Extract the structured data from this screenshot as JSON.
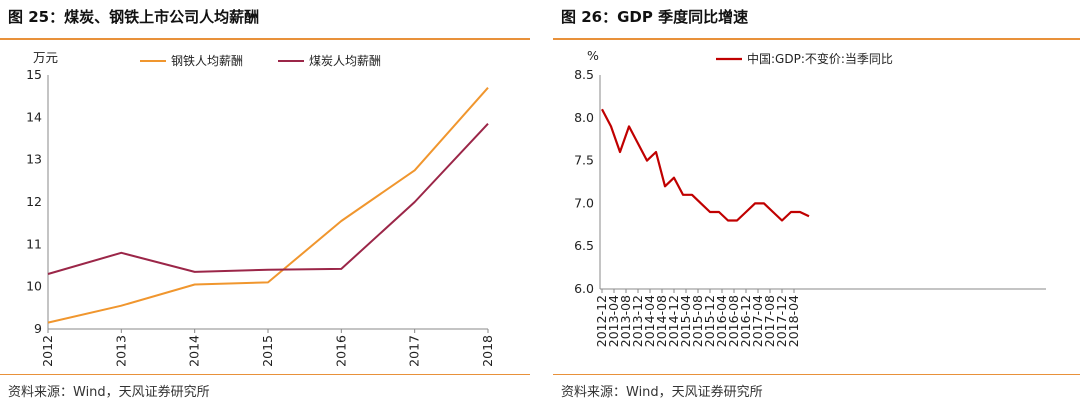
{
  "left": {
    "title": "图 25：煤炭、钢铁上市公司人均薪酬",
    "source": "资料来源：Wind，天风证券研究所"
  },
  "right": {
    "title": "图 26：GDP 季度同比增速",
    "source": "资料来源：Wind，天风证券研究所"
  },
  "colors": {
    "accent": "#E8913A",
    "steel": "#F0962E",
    "coal": "#9B2648",
    "gdp": "#C00000"
  },
  "chart_data": [
    {
      "type": "line",
      "ylabel": "万元",
      "ylim": [
        9,
        15
      ],
      "yticks": [
        "15",
        "14",
        "13",
        "12",
        "11",
        "10",
        "9"
      ],
      "categories": [
        "2012",
        "2013",
        "2014",
        "2015",
        "2016",
        "2017",
        "2018"
      ],
      "legend_position": "top",
      "grid": false,
      "series": [
        {
          "name": "钢铁人均薪酬",
          "values": [
            9.15,
            9.55,
            10.05,
            10.1,
            11.55,
            12.75,
            14.7
          ]
        },
        {
          "name": "煤炭人均薪酬",
          "values": [
            10.3,
            10.8,
            10.35,
            10.4,
            10.42,
            12.0,
            13.85
          ]
        }
      ]
    },
    {
      "type": "line",
      "ylabel": "%",
      "ylim": [
        6.0,
        8.5
      ],
      "yticks": [
        "8.5",
        "8.0",
        "7.5",
        "7.0",
        "6.5",
        "6.0"
      ],
      "x": [
        "2012-12",
        "2013-03",
        "2013-06",
        "2013-09",
        "2013-12",
        "2014-03",
        "2014-06",
        "2014-09",
        "2014-12",
        "2015-03",
        "2015-06",
        "2015-09",
        "2015-12",
        "2016-03",
        "2016-06",
        "2016-09",
        "2016-12",
        "2017-03",
        "2017-06",
        "2017-09",
        "2017-12",
        "2018-03",
        "2018-06",
        "2018-09"
      ],
      "xticks": [
        "2012-12",
        "2013-04",
        "2013-08",
        "2013-12",
        "2014-04",
        "2014-08",
        "2014-12",
        "2015-04",
        "2015-08",
        "2015-12",
        "2016-04",
        "2016-08",
        "2016-12",
        "2017-04",
        "2017-08",
        "2017-12",
        "2018-04"
      ],
      "legend_position": "top",
      "grid": false,
      "series": [
        {
          "name": "中国:GDP:不变价:当季同比",
          "values": [
            8.1,
            7.9,
            7.6,
            7.9,
            7.7,
            7.5,
            7.6,
            7.2,
            7.3,
            7.1,
            7.1,
            7.0,
            6.9,
            6.9,
            6.8,
            6.8,
            6.9,
            7.0,
            7.0,
            6.9,
            6.8,
            6.9,
            6.9,
            6.85
          ]
        }
      ]
    }
  ]
}
